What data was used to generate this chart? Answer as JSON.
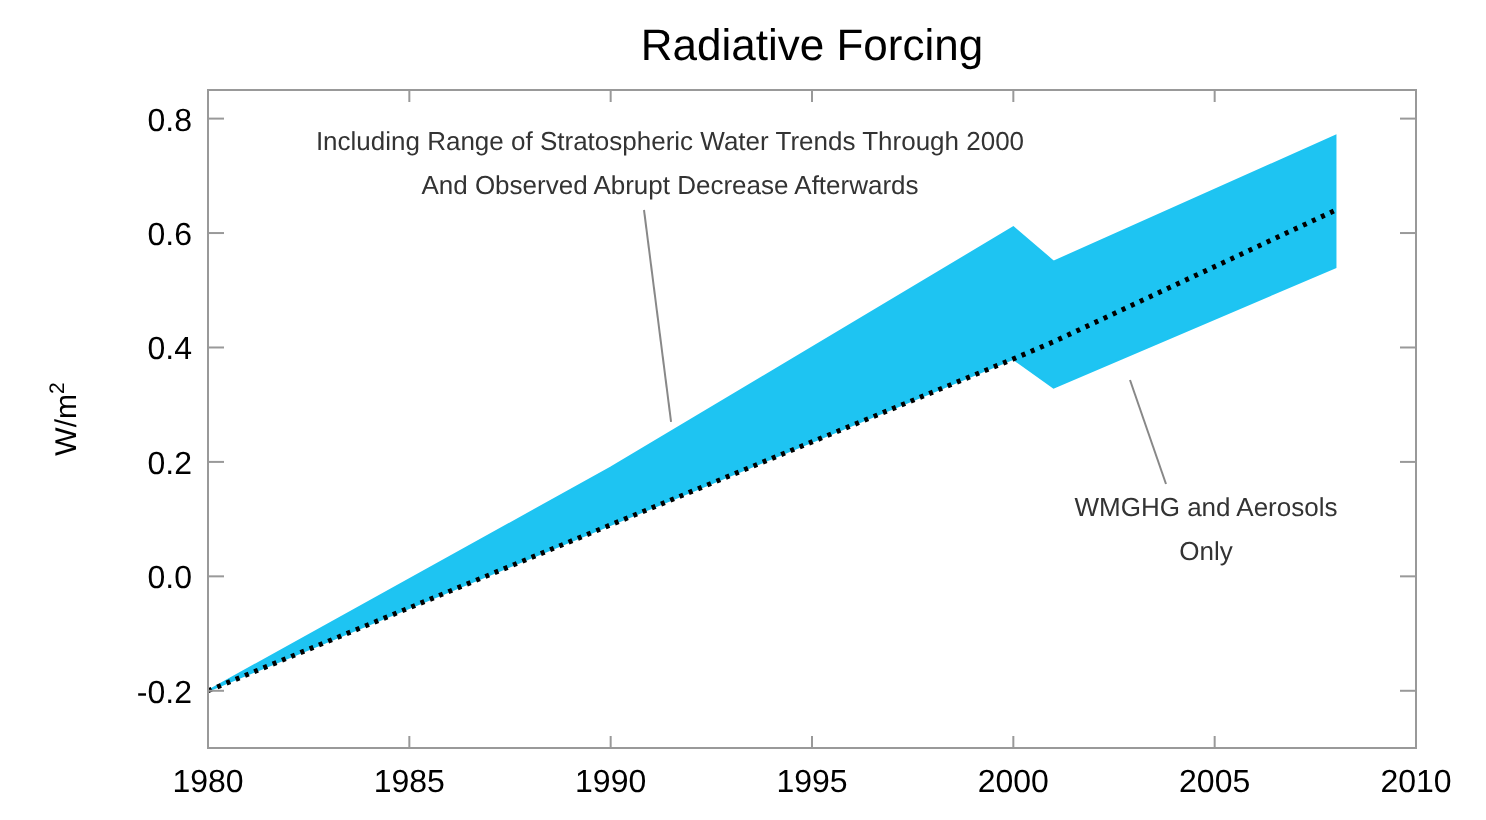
{
  "chart_data": {
    "type": "line",
    "title": "Radiative Forcing",
    "ylabel": "W/m$^{2}$",
    "xlim": [
      1980,
      2010
    ],
    "xticks": [
      1980,
      1985,
      1990,
      1995,
      2000,
      2005,
      2010
    ],
    "ylim": [
      -0.3,
      0.85
    ],
    "yticks": [
      -0.2,
      {
        "value": 0,
        "label": "0.0"
      },
      0.2,
      0.4,
      0.6,
      0.8
    ],
    "series": [
      {
        "color": "#000000",
        "line_style": "dotted",
        "x": [
          1980,
          1990,
          2000,
          2001,
          2008
        ],
        "values": [
          -0.2,
          0.09,
          0.38,
          0.41,
          0.64
        ],
        "lower": [
          -0.2,
          0.09,
          0.38,
          0.33,
          0.54
        ],
        "upper": [
          -0.2,
          0.19,
          0.61,
          0.55,
          0.77
        ]
      }
    ],
    "annotations": [
      {
        "text": "Including Range of Stratospheric Water Trends Through 2000\nAnd Observed Abrupt Decrease Afterwards",
        "x": 1991.5,
        "y": 0.27
      },
      "WMGHG and Aerosols\nOnly"
    ],
    "grid": false
  }
}
